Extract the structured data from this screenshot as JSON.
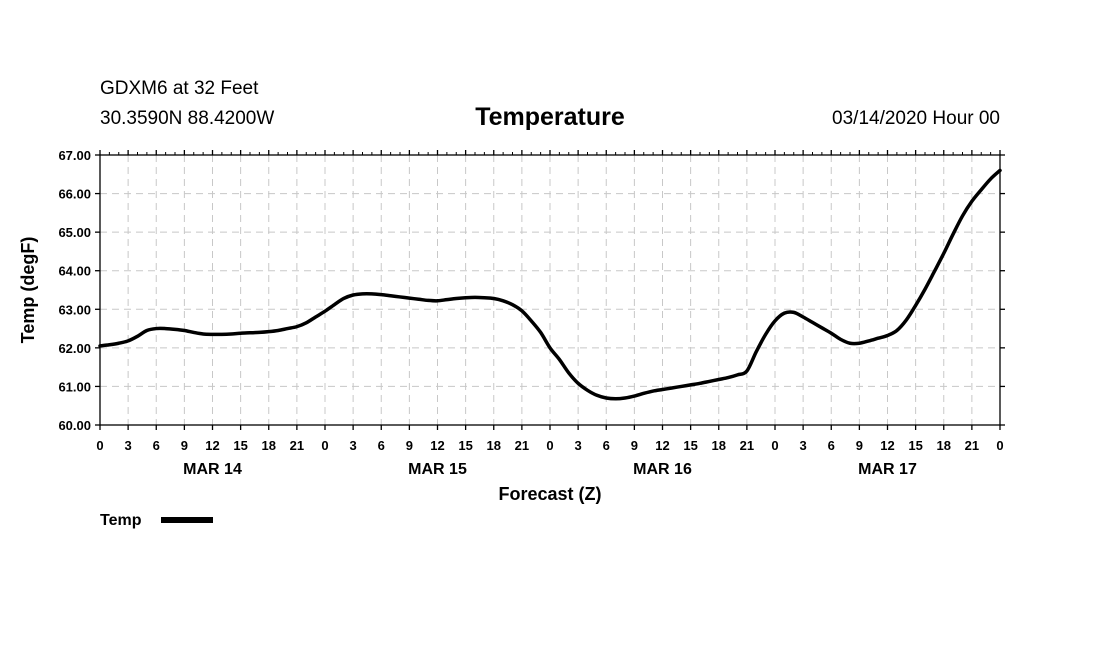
{
  "header": {
    "station_line": "GDXM6 at 32 Feet",
    "coords_line": "30.3590N 88.4200W",
    "title": "Temperature",
    "run_time": "03/14/2020 Hour 00"
  },
  "chart_data": {
    "type": "line",
    "title": "Temperature",
    "xlabel": "Forecast (Z)",
    "ylabel": "Temp (degF)",
    "xlim": [
      0,
      96
    ],
    "ylim": [
      60,
      67
    ],
    "y_ticks": [
      60,
      61,
      62,
      63,
      64,
      65,
      66,
      67
    ],
    "y_tick_labels": [
      "60.00",
      "61.00",
      "62.00",
      "63.00",
      "64.00",
      "65.00",
      "66.00",
      "67.00"
    ],
    "x_ticks": [
      0,
      3,
      6,
      9,
      12,
      15,
      18,
      21,
      24,
      27,
      30,
      33,
      36,
      39,
      42,
      45,
      48,
      51,
      54,
      57,
      60,
      63,
      66,
      69,
      72,
      75,
      78,
      81,
      84,
      87,
      90,
      93,
      96
    ],
    "x_tick_labels": [
      "0",
      "3",
      "6",
      "9",
      "12",
      "15",
      "18",
      "21",
      "0",
      "3",
      "6",
      "9",
      "12",
      "15",
      "18",
      "21",
      "0",
      "3",
      "6",
      "9",
      "12",
      "15",
      "18",
      "21",
      "0",
      "3",
      "6",
      "9",
      "12",
      "15",
      "18",
      "21",
      "0"
    ],
    "day_labels": [
      {
        "label": "MAR 14",
        "x": 12
      },
      {
        "label": "MAR 15",
        "x": 36
      },
      {
        "label": "MAR 16",
        "x": 60
      },
      {
        "label": "MAR 17",
        "x": 84
      }
    ],
    "grid": true,
    "legend": [
      {
        "name": "Temp",
        "color": "#000000"
      }
    ],
    "legend_position": "bottom-left",
    "series": [
      {
        "name": "Temp",
        "color": "#000000",
        "x": [
          0,
          1,
          2,
          3,
          4,
          5,
          6,
          7,
          8,
          9,
          10,
          11,
          12,
          13,
          14,
          15,
          16,
          17,
          18,
          19,
          20,
          21,
          22,
          23,
          24,
          25,
          26,
          27,
          28,
          29,
          30,
          31,
          32,
          33,
          34,
          35,
          36,
          37,
          38,
          39,
          40,
          41,
          42,
          43,
          44,
          45,
          46,
          47,
          48,
          49,
          50,
          51,
          52,
          53,
          54,
          55,
          56,
          57,
          58,
          59,
          60,
          61,
          62,
          63,
          64,
          65,
          66,
          67,
          68,
          69,
          70,
          71,
          72,
          73,
          74,
          75,
          76,
          77,
          78,
          79,
          80,
          81,
          82,
          83,
          84,
          85,
          86,
          87,
          88,
          89,
          90,
          91,
          92,
          93,
          94,
          95,
          96
        ],
        "values": [
          62.05,
          62.08,
          62.12,
          62.18,
          62.3,
          62.45,
          62.5,
          62.5,
          62.48,
          62.45,
          62.4,
          62.36,
          62.35,
          62.35,
          62.36,
          62.38,
          62.39,
          62.4,
          62.42,
          62.45,
          62.5,
          62.55,
          62.65,
          62.8,
          62.95,
          63.12,
          63.28,
          63.37,
          63.4,
          63.4,
          63.38,
          63.35,
          63.32,
          63.29,
          63.26,
          63.23,
          63.22,
          63.25,
          63.28,
          63.3,
          63.31,
          63.3,
          63.28,
          63.22,
          63.12,
          62.96,
          62.7,
          62.4,
          62.0,
          61.7,
          61.35,
          61.08,
          60.9,
          60.77,
          60.7,
          60.68,
          60.7,
          60.75,
          60.82,
          60.88,
          60.92,
          60.96,
          61.0,
          61.04,
          61.08,
          61.13,
          61.18,
          61.23,
          61.3,
          61.4,
          61.9,
          62.35,
          62.7,
          62.9,
          62.92,
          62.8,
          62.66,
          62.52,
          62.38,
          62.22,
          62.12,
          62.12,
          62.18,
          62.25,
          62.32,
          62.45,
          62.72,
          63.1,
          63.52,
          63.98,
          64.45,
          64.95,
          65.42,
          65.8,
          66.1,
          66.38,
          66.6
        ]
      }
    ]
  },
  "legend": {
    "label": "Temp"
  }
}
